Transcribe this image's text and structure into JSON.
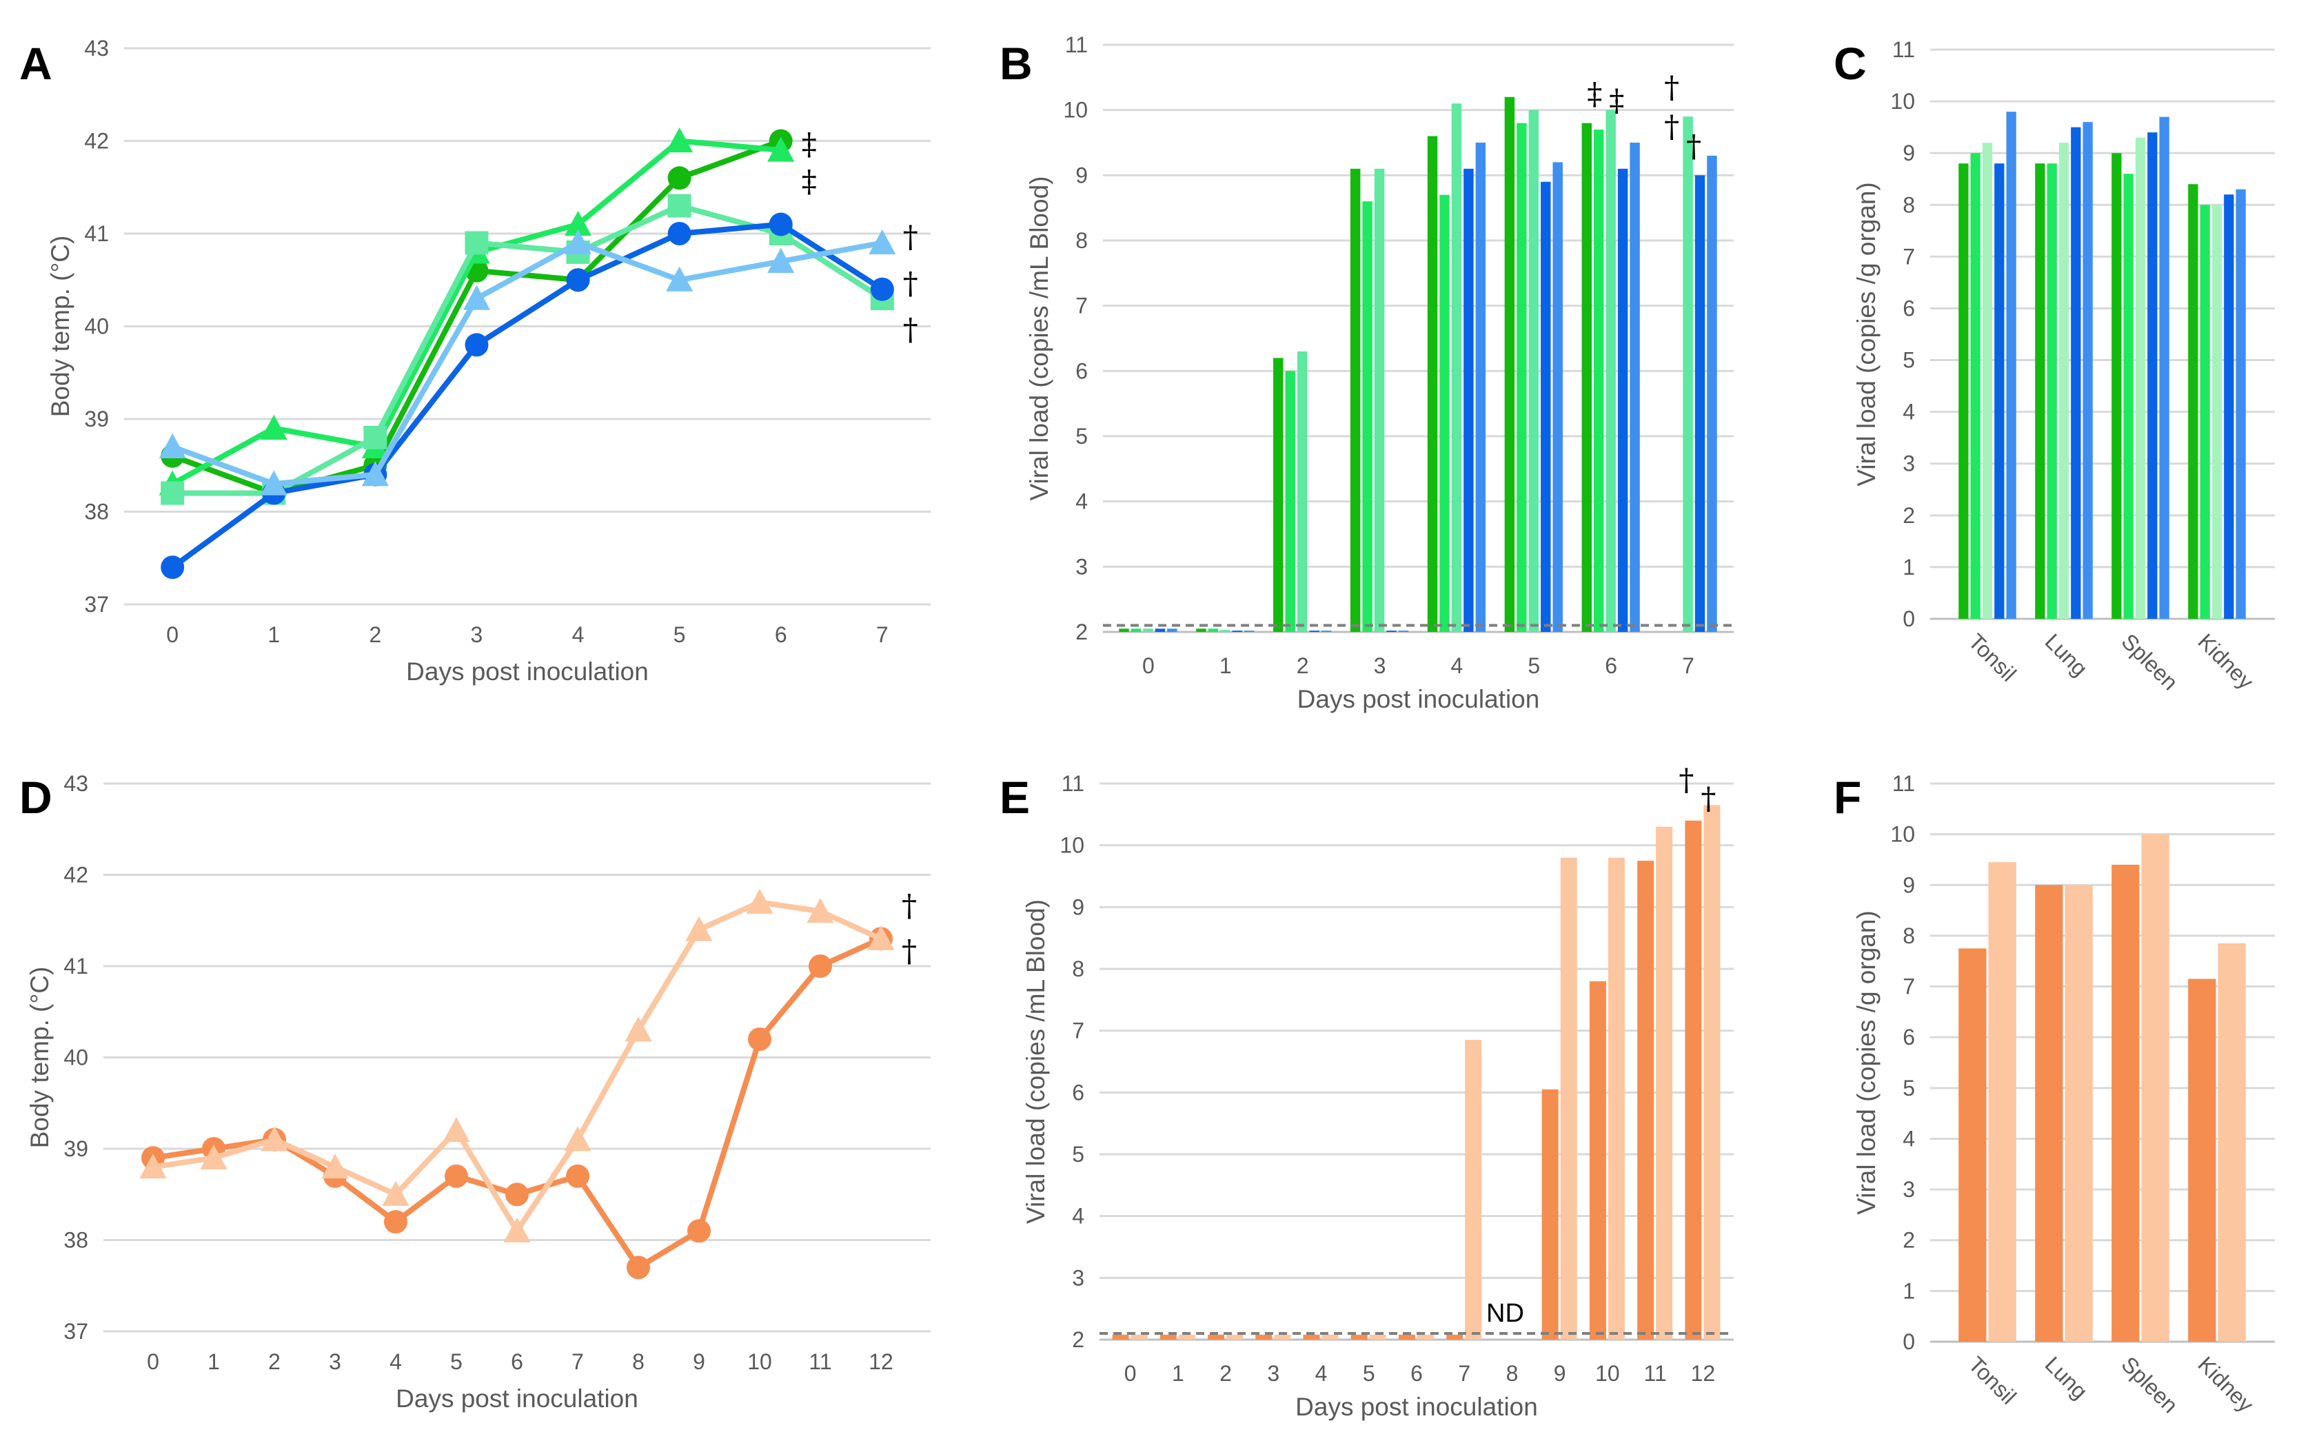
{
  "chart_data": [
    {
      "panel": "A",
      "type": "line",
      "xlabel": "Days post inoculation",
      "ylabel": "Body temp. (°C)",
      "x": [
        0,
        1,
        2,
        3,
        4,
        5,
        6,
        7
      ],
      "ylim": [
        37,
        43
      ],
      "series": [
        {
          "name": "green circle",
          "color": "#13b90e",
          "marker": "circle",
          "values": [
            38.6,
            38.2,
            38.5,
            40.6,
            40.5,
            41.6,
            42.0,
            null
          ]
        },
        {
          "name": "bright green triangle",
          "color": "#1ee860",
          "marker": "triangle",
          "values": [
            38.3,
            38.9,
            38.7,
            40.8,
            41.1,
            42.0,
            41.9,
            null
          ]
        },
        {
          "name": "light green square",
          "color": "#5ee8a0",
          "marker": "square",
          "values": [
            38.2,
            38.2,
            38.8,
            40.9,
            40.8,
            41.3,
            41.0,
            40.3
          ]
        },
        {
          "name": "blue circle",
          "color": "#0a63e6",
          "marker": "circle",
          "values": [
            37.4,
            38.2,
            38.4,
            39.8,
            40.5,
            41.0,
            41.1,
            40.4
          ]
        },
        {
          "name": "light blue triangle",
          "color": "#78c3f5",
          "marker": "triangle",
          "values": [
            38.7,
            38.3,
            38.4,
            40.3,
            40.9,
            40.5,
            40.7,
            40.9
          ]
        }
      ],
      "annotations": [
        {
          "text": "‡",
          "x": 6,
          "y": 42.0
        },
        {
          "text": "‡",
          "x": 6,
          "y": 41.6
        },
        {
          "text": "†",
          "x": 7,
          "y": 41.0
        },
        {
          "text": "†",
          "x": 7,
          "y": 40.5
        },
        {
          "text": "†",
          "x": 7,
          "y": 40.0
        }
      ]
    },
    {
      "panel": "B",
      "type": "bar",
      "xlabel": "Days post inoculation",
      "ylabel": "Viral load (copies /mL Blood)",
      "categories": [
        "0",
        "1",
        "2",
        "3",
        "4",
        "5",
        "6",
        "7"
      ],
      "ylim": [
        2,
        11
      ],
      "detection_limit": 2.1,
      "series": [
        {
          "name": "green",
          "color": "#13b90e",
          "values": [
            2.05,
            2.05,
            6.2,
            9.1,
            9.6,
            10.2,
            9.8,
            null
          ]
        },
        {
          "name": "bright green",
          "color": "#1ee860",
          "values": [
            2.05,
            2.05,
            6.0,
            8.6,
            8.7,
            9.8,
            9.7,
            null
          ]
        },
        {
          "name": "light green",
          "color": "#5ee8a0",
          "values": [
            2.05,
            2.03,
            6.3,
            9.1,
            10.1,
            10.0,
            10.0,
            9.9
          ]
        },
        {
          "name": "blue",
          "color": "#0a63e6",
          "values": [
            2.05,
            2.02,
            2.02,
            2.02,
            9.1,
            8.9,
            9.1,
            9.0
          ]
        },
        {
          "name": "light blue",
          "color": "#3e8ef0",
          "values": [
            2.05,
            2.02,
            2.02,
            2.02,
            9.5,
            9.2,
            9.5,
            9.3
          ]
        }
      ],
      "annotations": [
        {
          "text": "‡",
          "x": "6",
          "y": 10.0
        },
        {
          "text": "‡",
          "x": "6",
          "y": 9.9
        },
        {
          "text": "†",
          "x": "7",
          "y": 10.1
        },
        {
          "text": "†",
          "x": "7",
          "y": 9.2
        },
        {
          "text": "†",
          "x": "7",
          "y": 9.5
        }
      ]
    },
    {
      "panel": "C",
      "type": "bar",
      "xlabel": "",
      "ylabel": "Viral load (copies /g organ)",
      "categories": [
        "Tonsil",
        "Lung",
        "Spleen",
        "Kidney"
      ],
      "ylim": [
        0,
        11
      ],
      "series": [
        {
          "name": "green",
          "color": "#13b90e",
          "values": [
            8.8,
            8.8,
            9.0,
            8.4
          ]
        },
        {
          "name": "bright green",
          "color": "#1ee860",
          "values": [
            9.0,
            8.8,
            8.6,
            8.0
          ]
        },
        {
          "name": "light green",
          "color": "#a6f2bd",
          "values": [
            9.2,
            9.2,
            9.3,
            8.0
          ]
        },
        {
          "name": "blue",
          "color": "#0a63e6",
          "values": [
            8.8,
            9.5,
            9.4,
            8.2
          ]
        },
        {
          "name": "light blue",
          "color": "#3e8ef0",
          "values": [
            9.8,
            9.6,
            9.7,
            8.3
          ]
        }
      ]
    },
    {
      "panel": "D",
      "type": "line",
      "xlabel": "Days post inoculation",
      "ylabel": "Body temp. (°C)",
      "x": [
        0,
        1,
        2,
        3,
        4,
        5,
        6,
        7,
        8,
        9,
        10,
        11,
        12
      ],
      "ylim": [
        37,
        43
      ],
      "series": [
        {
          "name": "orange circle",
          "color": "#f58c50",
          "marker": "circle",
          "values": [
            38.9,
            39.0,
            39.1,
            38.7,
            38.2,
            38.7,
            38.5,
            38.7,
            37.7,
            38.1,
            40.2,
            41.0,
            41.3
          ]
        },
        {
          "name": "peach triangle",
          "color": "#fbc6a0",
          "marker": "triangle",
          "values": [
            38.8,
            38.9,
            39.1,
            38.8,
            38.5,
            39.2,
            38.1,
            39.1,
            40.3,
            41.4,
            41.7,
            41.6,
            41.3
          ]
        }
      ],
      "annotations": [
        {
          "text": "†",
          "x": 12,
          "y": 41.7
        },
        {
          "text": "†",
          "x": 12,
          "y": 41.2
        }
      ]
    },
    {
      "panel": "E",
      "type": "bar",
      "xlabel": "Days post inoculation",
      "ylabel": "Viral load (copies /mL Blood)",
      "categories": [
        "0",
        "1",
        "2",
        "3",
        "4",
        "5",
        "6",
        "7",
        "8",
        "9",
        "10",
        "11",
        "12"
      ],
      "ylim": [
        2,
        11
      ],
      "detection_limit": 2.1,
      "series": [
        {
          "name": "orange",
          "color": "#f58c50",
          "values": [
            2.08,
            2.08,
            2.08,
            2.08,
            2.08,
            2.08,
            2.08,
            2.08,
            null,
            6.05,
            7.8,
            9.75,
            10.4
          ]
        },
        {
          "name": "peach",
          "color": "#fbc6a0",
          "values": [
            2.08,
            2.08,
            2.08,
            2.08,
            2.08,
            2.08,
            2.08,
            6.85,
            null,
            9.8,
            9.8,
            10.3,
            10.65
          ]
        }
      ],
      "annotations": [
        {
          "text": "ND",
          "x": "8",
          "y": 2.2
        },
        {
          "text": "†",
          "x": "12",
          "y": 10.5
        },
        {
          "text": "†",
          "x": "12",
          "y": 10.8
        }
      ]
    },
    {
      "panel": "F",
      "type": "bar",
      "xlabel": "",
      "ylabel": "Viral load (copies /g organ)",
      "categories": [
        "Tonsil",
        "Lung",
        "Spleen",
        "Kidney"
      ],
      "ylim": [
        0,
        11
      ],
      "series": [
        {
          "name": "orange",
          "color": "#f58c50",
          "values": [
            7.75,
            9.0,
            9.4,
            7.15
          ]
        },
        {
          "name": "peach",
          "color": "#fbc6a0",
          "values": [
            9.45,
            9.0,
            10.0,
            7.85
          ]
        }
      ]
    }
  ]
}
